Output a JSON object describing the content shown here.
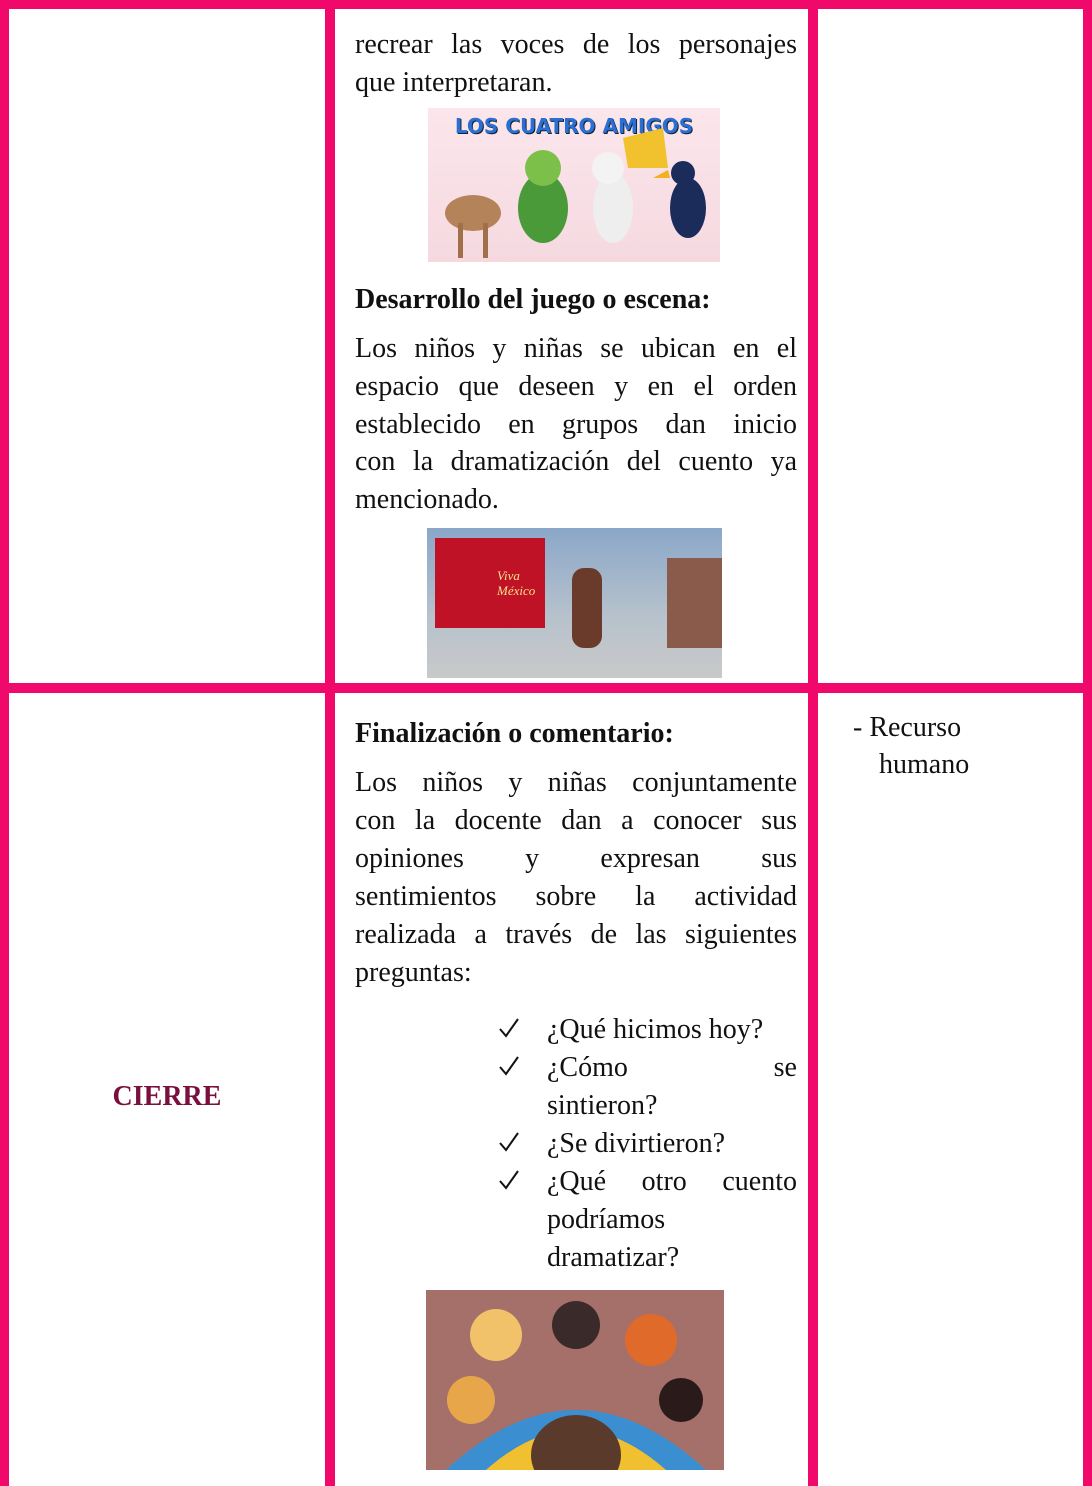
{
  "rows": [
    {
      "intro": [
        "recrear las voces de los personajes",
        "que interpretaran."
      ],
      "image_text": "LOS CUATRO AMIGOS",
      "heading": "Desarrollo del juego o escena:",
      "paragraph": [
        "Los niños y niñas se ubican en el",
        "espacio que deseen y en el orden",
        "establecido en grupos dan inicio",
        "con la dramatización del cuento ya",
        "mencionado."
      ],
      "image2_text": "Viva México"
    },
    {
      "stage": "CIERRE",
      "heading": "Finalización o comentario:",
      "paragraph": [
        "Los niños y niñas conjuntamente",
        "con la docente dan a conocer sus",
        "opiniones y expresan sus",
        "sentimientos sobre la actividad",
        "realizada a través de las siguientes",
        "preguntas:"
      ],
      "checklist": [
        [
          "¿Qué hicimos hoy?"
        ],
        [
          "¿Cómo se",
          "sintieron?"
        ],
        [
          "¿Se divirtieron?"
        ],
        [
          "¿Qué otro cuento",
          "podríamos",
          "dramatizar?"
        ]
      ],
      "resources": [
        "- Recurso",
        "humano"
      ]
    }
  ]
}
